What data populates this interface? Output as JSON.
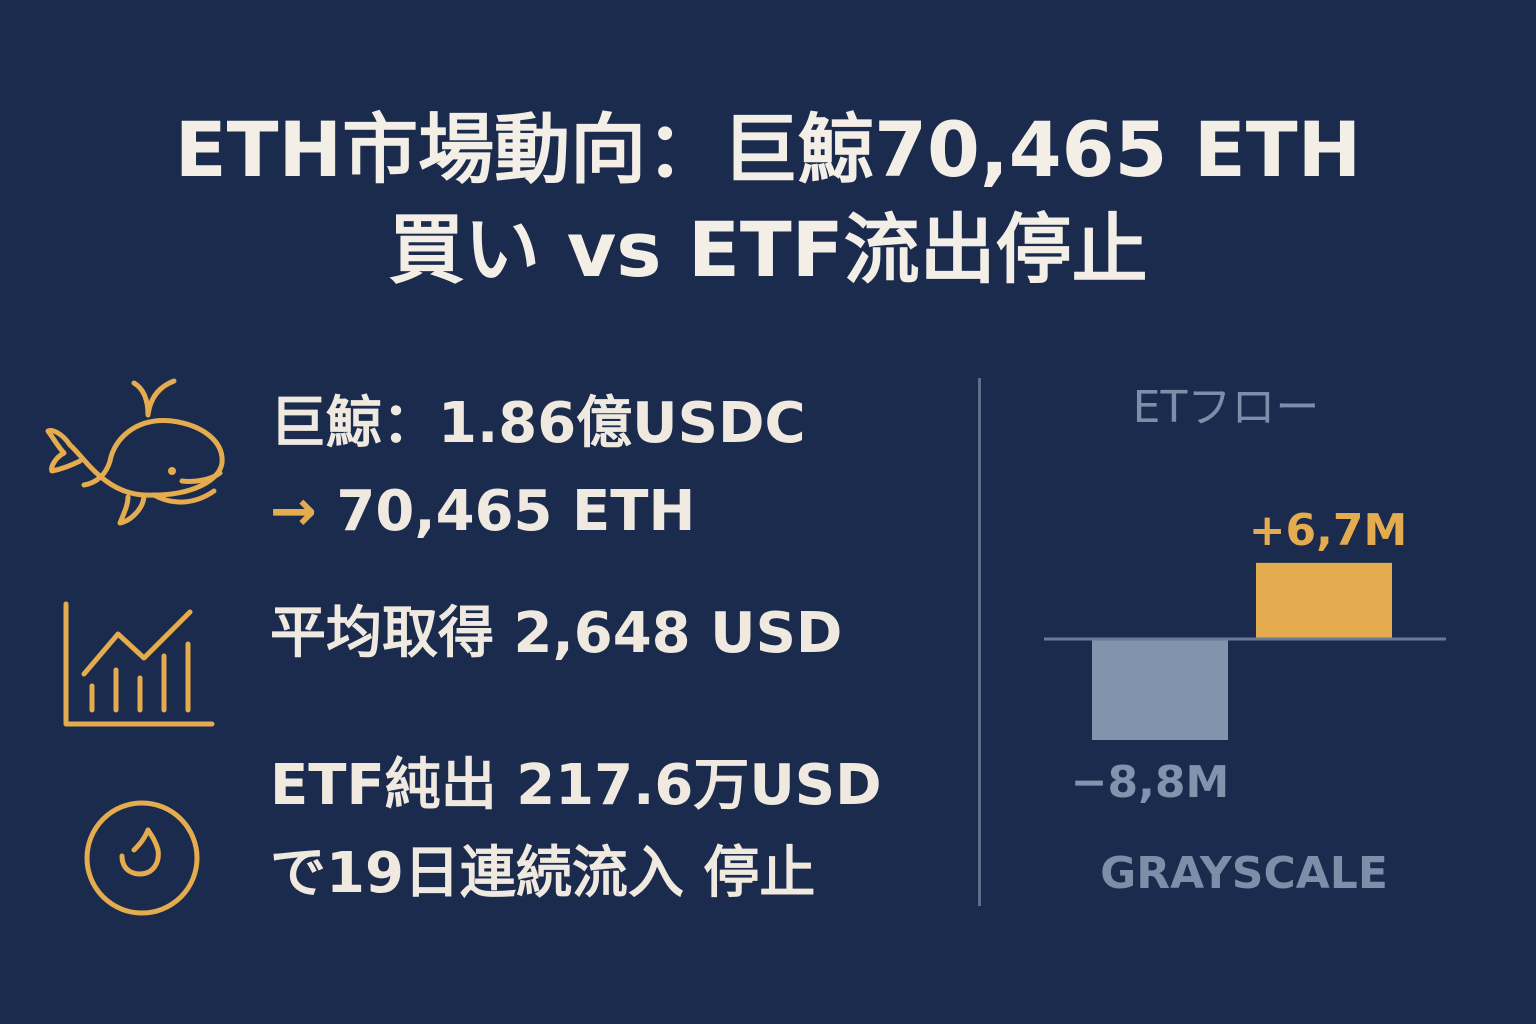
{
  "title": {
    "line1": "ETH市場動向：巨鯨70,465 ETH",
    "line2": "買い vs ETF流出停止"
  },
  "items": [
    {
      "icon": "whale-icon",
      "line1": "巨鯨：1.86億USDC",
      "arrow": "→",
      "line2": "70,465 ETH"
    },
    {
      "icon": "bar-chart-trend-icon",
      "line1": "平均取得 2,648 USD"
    },
    {
      "icon": "coin-check-icon",
      "line1": "ETF純出 217.6万USD",
      "line2": "で19日連続流入 停止"
    }
  ],
  "colors": {
    "background": "#1b2b4d",
    "accent": "#e4ac4e",
    "negative": "#8193ad",
    "text": "#f2ede4",
    "muted": "#7d8ea8"
  },
  "chart_data": {
    "type": "bar",
    "title": "ETフロー",
    "categories": [
      "",
      ""
    ],
    "values": [
      -8.8,
      6.7
    ],
    "data_labels": [
      "−8,8M",
      "+6,7M"
    ],
    "footer": "GRAYSCALE",
    "ylim": [
      -10,
      12
    ]
  }
}
